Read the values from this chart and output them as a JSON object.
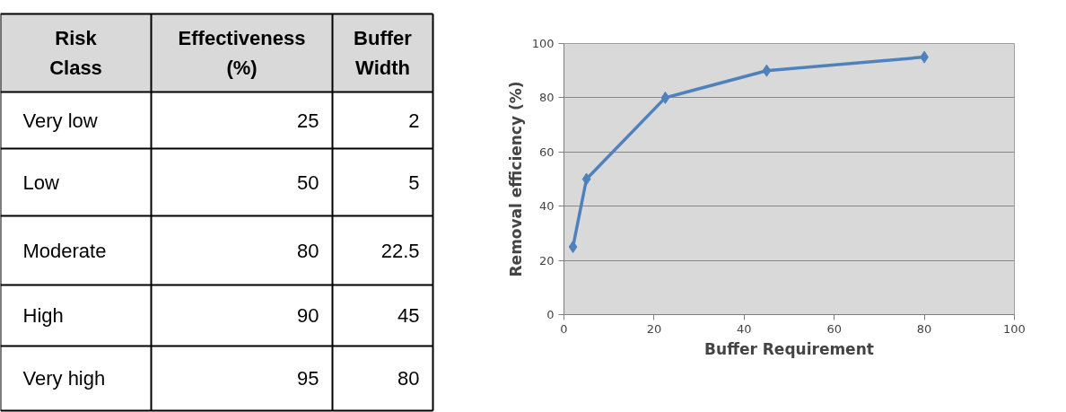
{
  "chart_data": [
    {
      "type": "other",
      "annotations": [
        "Risk Class"
      ],
      "data_labels": true,
      "categories": [
        "Very low",
        "Low",
        "Moderate",
        "High",
        "Very high"
      ],
      "series": [
        {
          "name": "Effectiveness (%)",
          "values": [
            25,
            50,
            80,
            90,
            95
          ]
        },
        {
          "name": "Buffer Width",
          "values": [
            2,
            5,
            22.5,
            45,
            80
          ]
        }
      ]
    },
    {
      "type": "line",
      "xlabel": "Buffer Requirement",
      "ylabel": "Removal efficiency (%)",
      "x": [
        2,
        5,
        22.5,
        45,
        80
      ],
      "series": [
        {
          "color": "#4f81bd",
          "values": [
            25,
            50,
            80,
            90,
            95
          ]
        }
      ],
      "xlim": [
        0,
        100
      ],
      "xticks": [
        0,
        20,
        40,
        60,
        80,
        100
      ],
      "ylim": [
        0,
        100
      ],
      "yticks": [
        0,
        20,
        40,
        60,
        80,
        100
      ],
      "grid": "y",
      "marker": "diamond",
      "line_style": "solid"
    }
  ]
}
